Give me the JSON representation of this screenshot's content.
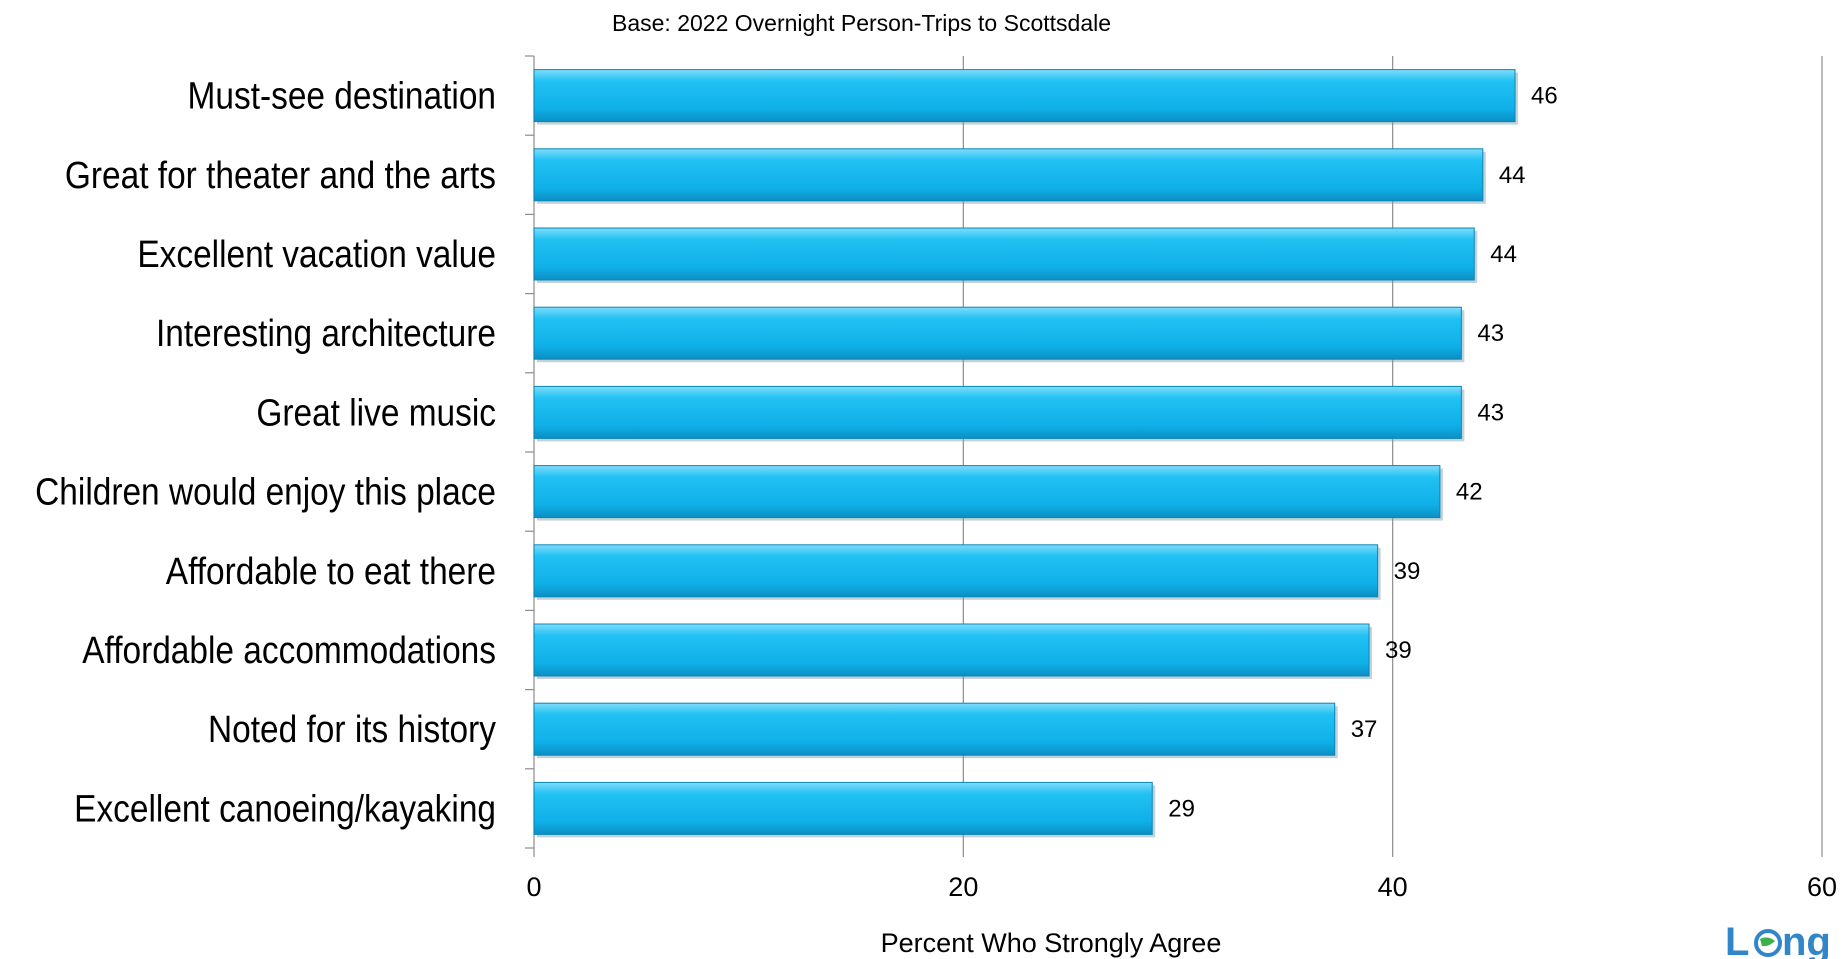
{
  "chart_data": {
    "type": "bar",
    "orientation": "horizontal",
    "title": "",
    "subtitle": "Base: 2022 Overnight Person-Trips to Scottsdale",
    "xlabel": "Percent Who Strongly Agree",
    "ylabel": "",
    "xlim": [
      0,
      60
    ],
    "xticks": [
      0,
      20,
      40,
      60
    ],
    "grid": true,
    "bar_color": "#1bb9ef",
    "categories": [
      "Must-see destination",
      "Great for theater and the arts",
      "Excellent vacation value",
      "Interesting architecture",
      "Great live music",
      "Children would enjoy this place",
      "Affordable to eat there",
      "Affordable accommodations",
      "Noted for its history",
      "Excellent canoeing/kayaking"
    ],
    "values": [
      45.7,
      44.2,
      43.8,
      43.2,
      43.2,
      42.2,
      39.3,
      38.9,
      37.3,
      28.8
    ],
    "data_labels": [
      "46",
      "44",
      "44",
      "43",
      "43",
      "42",
      "39",
      "39",
      "37",
      "29"
    ]
  },
  "logo": {
    "text": "Longwoods",
    "icon": "globe-icon",
    "color": "#2f86c8"
  }
}
